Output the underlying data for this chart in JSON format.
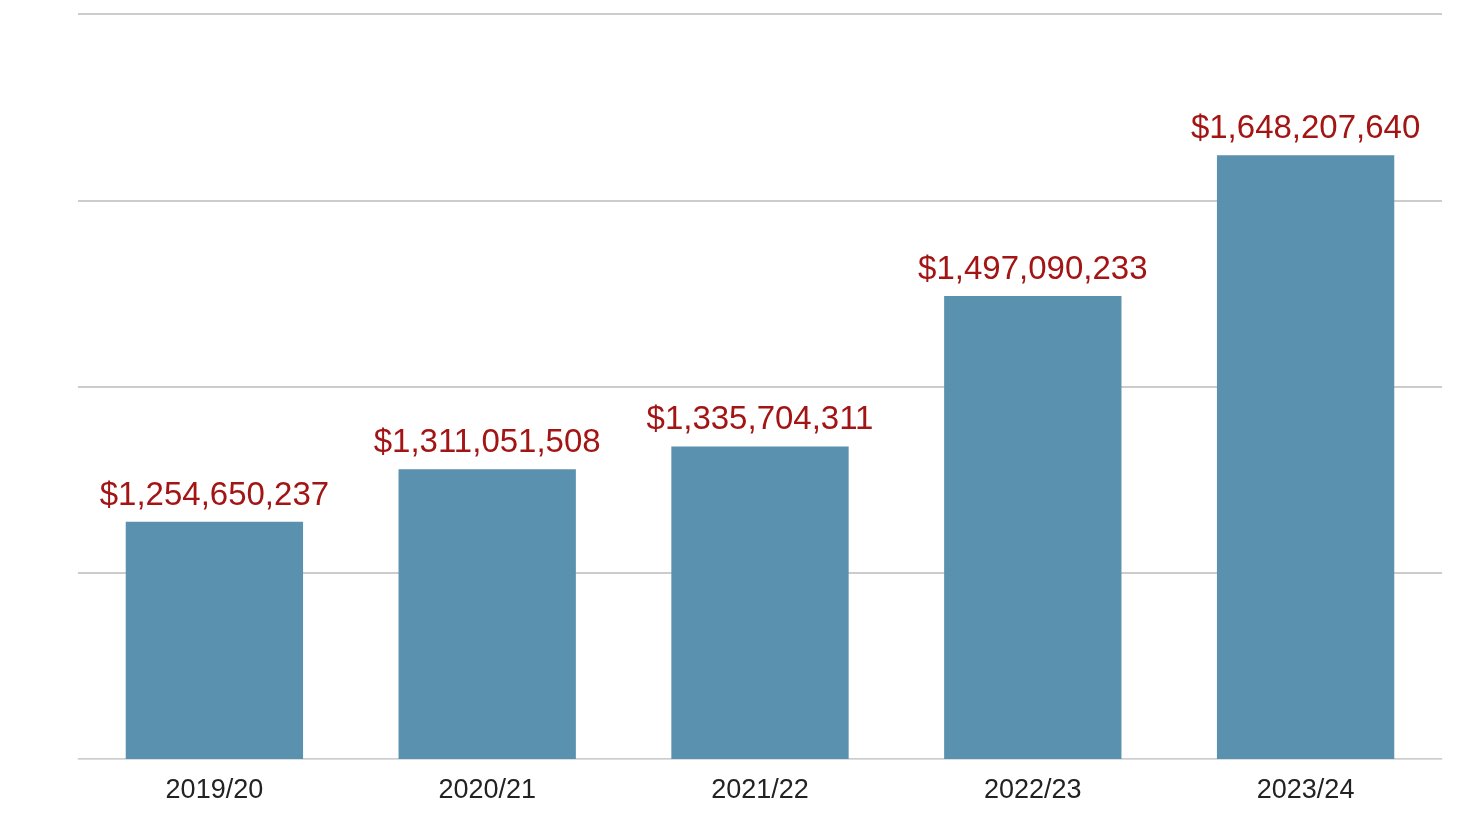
{
  "chart_data": {
    "type": "bar",
    "categories": [
      "2019/20",
      "2020/21",
      "2021/22",
      "2022/23",
      "2023/24"
    ],
    "values": [
      1254650237,
      1311051508,
      1335704311,
      1497090233,
      1648207640
    ],
    "value_labels": [
      "$1,254,650,237",
      "$1,311,051,508",
      "$1,335,704,311",
      "$1,497,090,233",
      "$1,648,207,640"
    ],
    "color": "#5a91ae",
    "ylim": [
      1000000000,
      1800000000
    ],
    "yticks": [
      {
        "value": 1000000000,
        "label": null
      },
      {
        "value": 1200000000,
        "label": null
      },
      {
        "value": 1400000000,
        "label": null
      },
      {
        "value": 1600000000,
        "label": null
      },
      {
        "value": 1800000000,
        "label": null
      }
    ],
    "grid": "y",
    "tick_labels": "x"
  }
}
